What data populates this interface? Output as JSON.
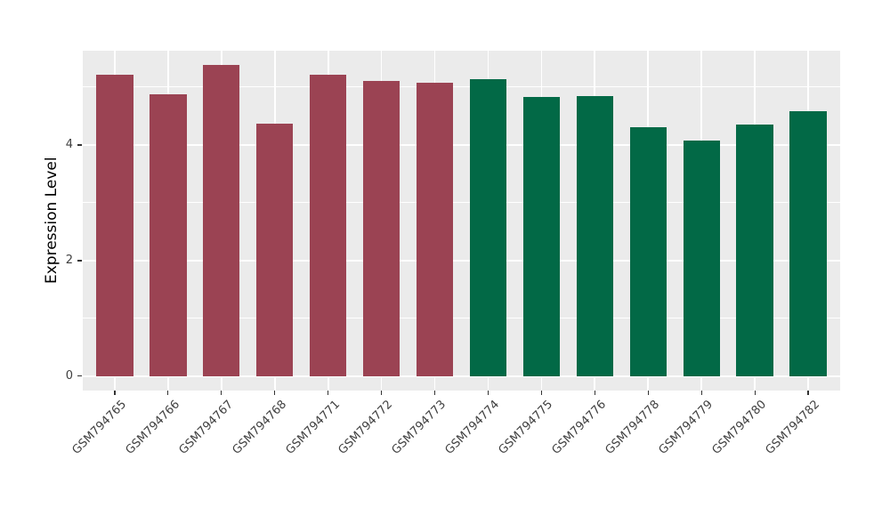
{
  "chart_data": {
    "type": "bar",
    "title": "",
    "xlabel": "",
    "ylabel": "Expression Level",
    "categories": [
      "GSM794765",
      "GSM794766",
      "GSM794767",
      "GSM794768",
      "GSM794771",
      "GSM794772",
      "GSM794773",
      "GSM794774",
      "GSM794775",
      "GSM794776",
      "GSM794778",
      "GSM794779",
      "GSM794780",
      "GSM794782"
    ],
    "values": [
      5.22,
      4.88,
      5.38,
      4.37,
      5.22,
      5.11,
      5.07,
      5.13,
      4.83,
      4.84,
      4.31,
      4.07,
      4.36,
      4.58
    ],
    "bar_groups": [
      "maroon",
      "maroon",
      "maroon",
      "maroon",
      "maroon",
      "maroon",
      "maroon",
      "green",
      "green",
      "green",
      "green",
      "green",
      "green",
      "green"
    ],
    "group_colors": {
      "maroon": "#9B4353",
      "green": "#026946"
    },
    "yticks": [
      0,
      2,
      4
    ],
    "ytick_labels": [
      "0",
      "2",
      "4"
    ],
    "minor_gridlines": [
      1,
      3,
      5
    ],
    "ylim": [
      -0.25,
      5.63
    ],
    "bar_width_fraction": 0.69,
    "category_expand": 0.6,
    "grid_on": true,
    "legend": "none",
    "panel_bg": "#EBEBEB",
    "grid_color": "#FFFFFF",
    "axis_text_color": "#404040"
  }
}
